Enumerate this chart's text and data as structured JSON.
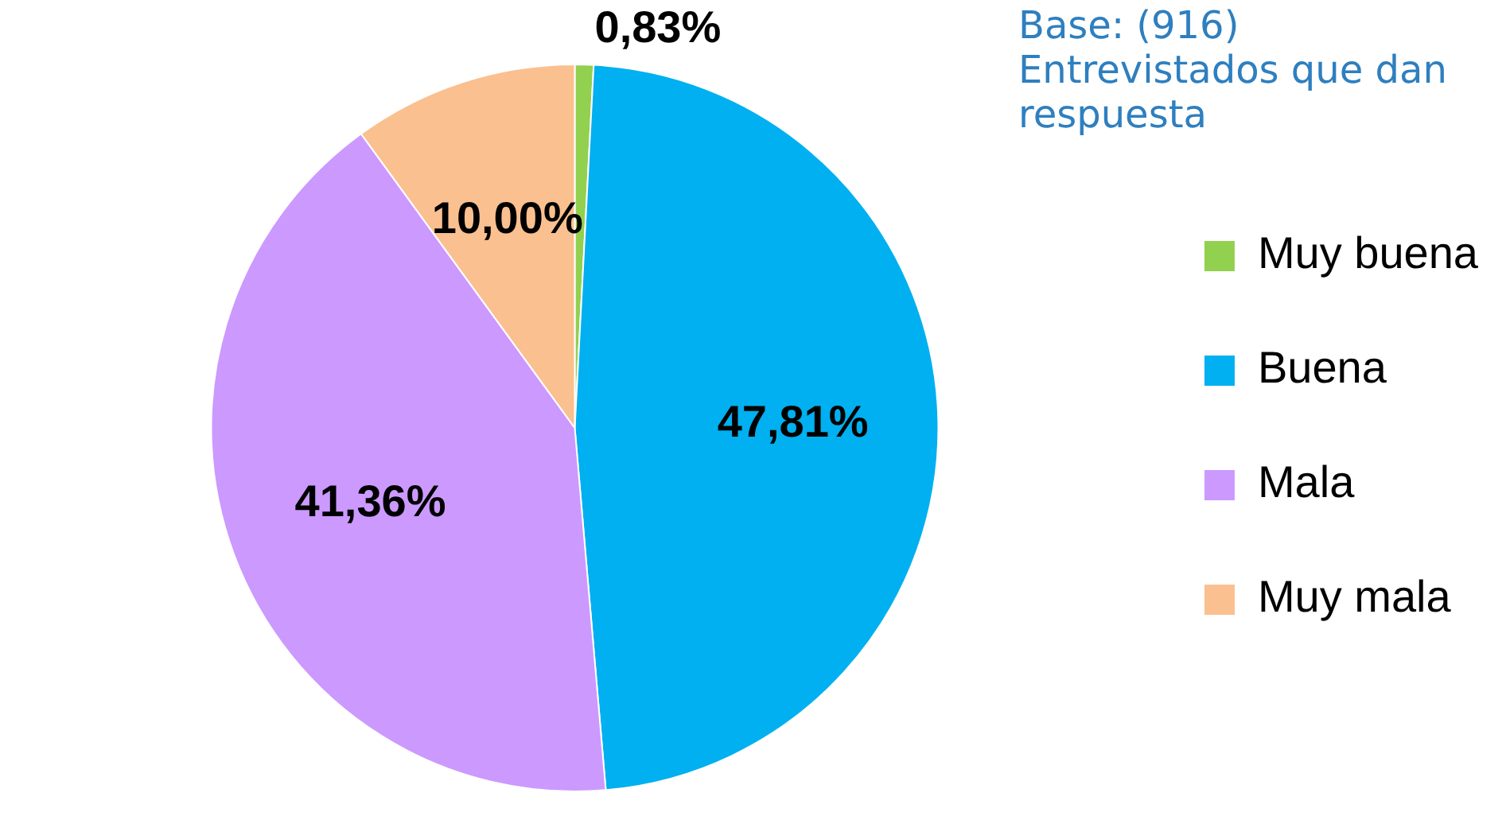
{
  "chart_data": {
    "type": "pie",
    "categories": [
      "Muy buena",
      "Buena",
      "Mala",
      "Muy mala"
    ],
    "values": [
      0.83,
      47.81,
      41.36,
      10.0
    ],
    "colors": [
      "#92d050",
      "#00b0f0",
      "#cc99ff",
      "#fac090"
    ],
    "value_labels": [
      "0,83%",
      "47,81%",
      "41,36%",
      "10,00%"
    ],
    "legend": "right",
    "annotations": [
      "Base: (916)",
      "Entrevistados que dan respuesta"
    ]
  }
}
